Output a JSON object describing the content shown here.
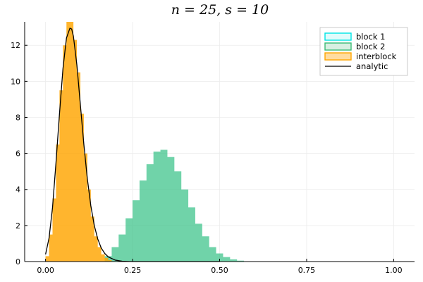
{
  "chart_data": {
    "type": "histogram",
    "title": "n = 25, s = 10",
    "xlabel": "",
    "ylabel": "",
    "xlim": [
      -0.06,
      1.06
    ],
    "ylim": [
      0,
      13.3
    ],
    "xticks": [
      {
        "value": 0.0,
        "label": "0.00"
      },
      {
        "value": 0.25,
        "label": "0.25"
      },
      {
        "value": 0.5,
        "label": "0.50"
      },
      {
        "value": 0.75,
        "label": "0.75"
      },
      {
        "value": 1.0,
        "label": "1.00"
      }
    ],
    "yticks": [
      {
        "value": 0,
        "label": "0"
      },
      {
        "value": 2,
        "label": "2"
      },
      {
        "value": 4,
        "label": "4"
      },
      {
        "value": 6,
        "label": "6"
      },
      {
        "value": 8,
        "label": "8"
      },
      {
        "value": 10,
        "label": "10"
      },
      {
        "value": 12,
        "label": "12"
      }
    ],
    "grid": true,
    "legend_position": "top-right",
    "series": [
      {
        "name": "block 1",
        "kind": "histogram",
        "color": "#00e5e5",
        "x": [
          0.18,
          0.2,
          0.22,
          0.24,
          0.26,
          0.28,
          0.3,
          0.32,
          0.34,
          0.36,
          0.38,
          0.4,
          0.42,
          0.44,
          0.46,
          0.48,
          0.5,
          0.52,
          0.54,
          0.56,
          0.58
        ],
        "y": [
          0.3,
          0.8,
          1.5,
          2.4,
          3.4,
          4.5,
          5.4,
          6.1,
          6.2,
          5.8,
          5.0,
          4.0,
          3.0,
          2.1,
          1.4,
          0.8,
          0.45,
          0.25,
          0.12,
          0.05,
          0.02
        ]
      },
      {
        "name": "block 2",
        "kind": "histogram",
        "color": "#3cbb75",
        "x": [
          0.18,
          0.2,
          0.22,
          0.24,
          0.26,
          0.28,
          0.3,
          0.32,
          0.34,
          0.36,
          0.38,
          0.4,
          0.42,
          0.44,
          0.46,
          0.48,
          0.5,
          0.52,
          0.54,
          0.56,
          0.58
        ],
        "y": [
          0.3,
          0.8,
          1.5,
          2.4,
          3.4,
          4.5,
          5.4,
          6.1,
          6.2,
          5.8,
          5.0,
          4.0,
          3.0,
          2.1,
          1.4,
          0.8,
          0.45,
          0.25,
          0.12,
          0.05,
          0.02
        ]
      },
      {
        "name": "interblock",
        "kind": "histogram",
        "color": "#ffa500",
        "x": [
          0.005,
          0.015,
          0.025,
          0.035,
          0.045,
          0.055,
          0.065,
          0.075,
          0.085,
          0.095,
          0.105,
          0.115,
          0.125,
          0.135,
          0.145,
          0.155,
          0.165,
          0.175,
          0.185
        ],
        "y": [
          0.3,
          1.5,
          3.5,
          6.5,
          9.5,
          12.0,
          13.3,
          13.3,
          12.3,
          10.5,
          8.2,
          6.0,
          4.0,
          2.5,
          1.4,
          0.8,
          0.4,
          0.2,
          0.08
        ]
      },
      {
        "name": "analytic",
        "kind": "line",
        "color": "#000000",
        "x": [
          0.0,
          0.01,
          0.02,
          0.03,
          0.04,
          0.05,
          0.06,
          0.07,
          0.075,
          0.08,
          0.09,
          0.1,
          0.11,
          0.12,
          0.13,
          0.14,
          0.15,
          0.16,
          0.17,
          0.18,
          0.2,
          0.22,
          0.25,
          0.3,
          0.4,
          0.5
        ],
        "y": [
          0.4,
          1.3,
          3.0,
          5.5,
          8.2,
          10.7,
          12.4,
          12.95,
          12.9,
          12.5,
          10.9,
          8.7,
          6.5,
          4.6,
          3.1,
          2.0,
          1.25,
          0.75,
          0.45,
          0.26,
          0.08,
          0.02,
          0.0,
          0.0,
          0.0,
          0.0
        ]
      }
    ],
    "legend": [
      {
        "name": "block 1",
        "swatch": "box",
        "fill": "#e0fbfb",
        "stroke": "#00e5e5"
      },
      {
        "name": "block 2",
        "swatch": "box",
        "fill": "#d8efe2",
        "stroke": "#3cbb75"
      },
      {
        "name": "interblock",
        "swatch": "box",
        "fill": "#ffdca0",
        "stroke": "#ffa500"
      },
      {
        "name": "analytic",
        "swatch": "line",
        "stroke": "#000000"
      }
    ]
  },
  "colors": {
    "block1": "#00e5e5",
    "block2": "#3cbb75",
    "interblock": "#ffa500",
    "analytic": "#000000",
    "grid": "#ececec"
  }
}
